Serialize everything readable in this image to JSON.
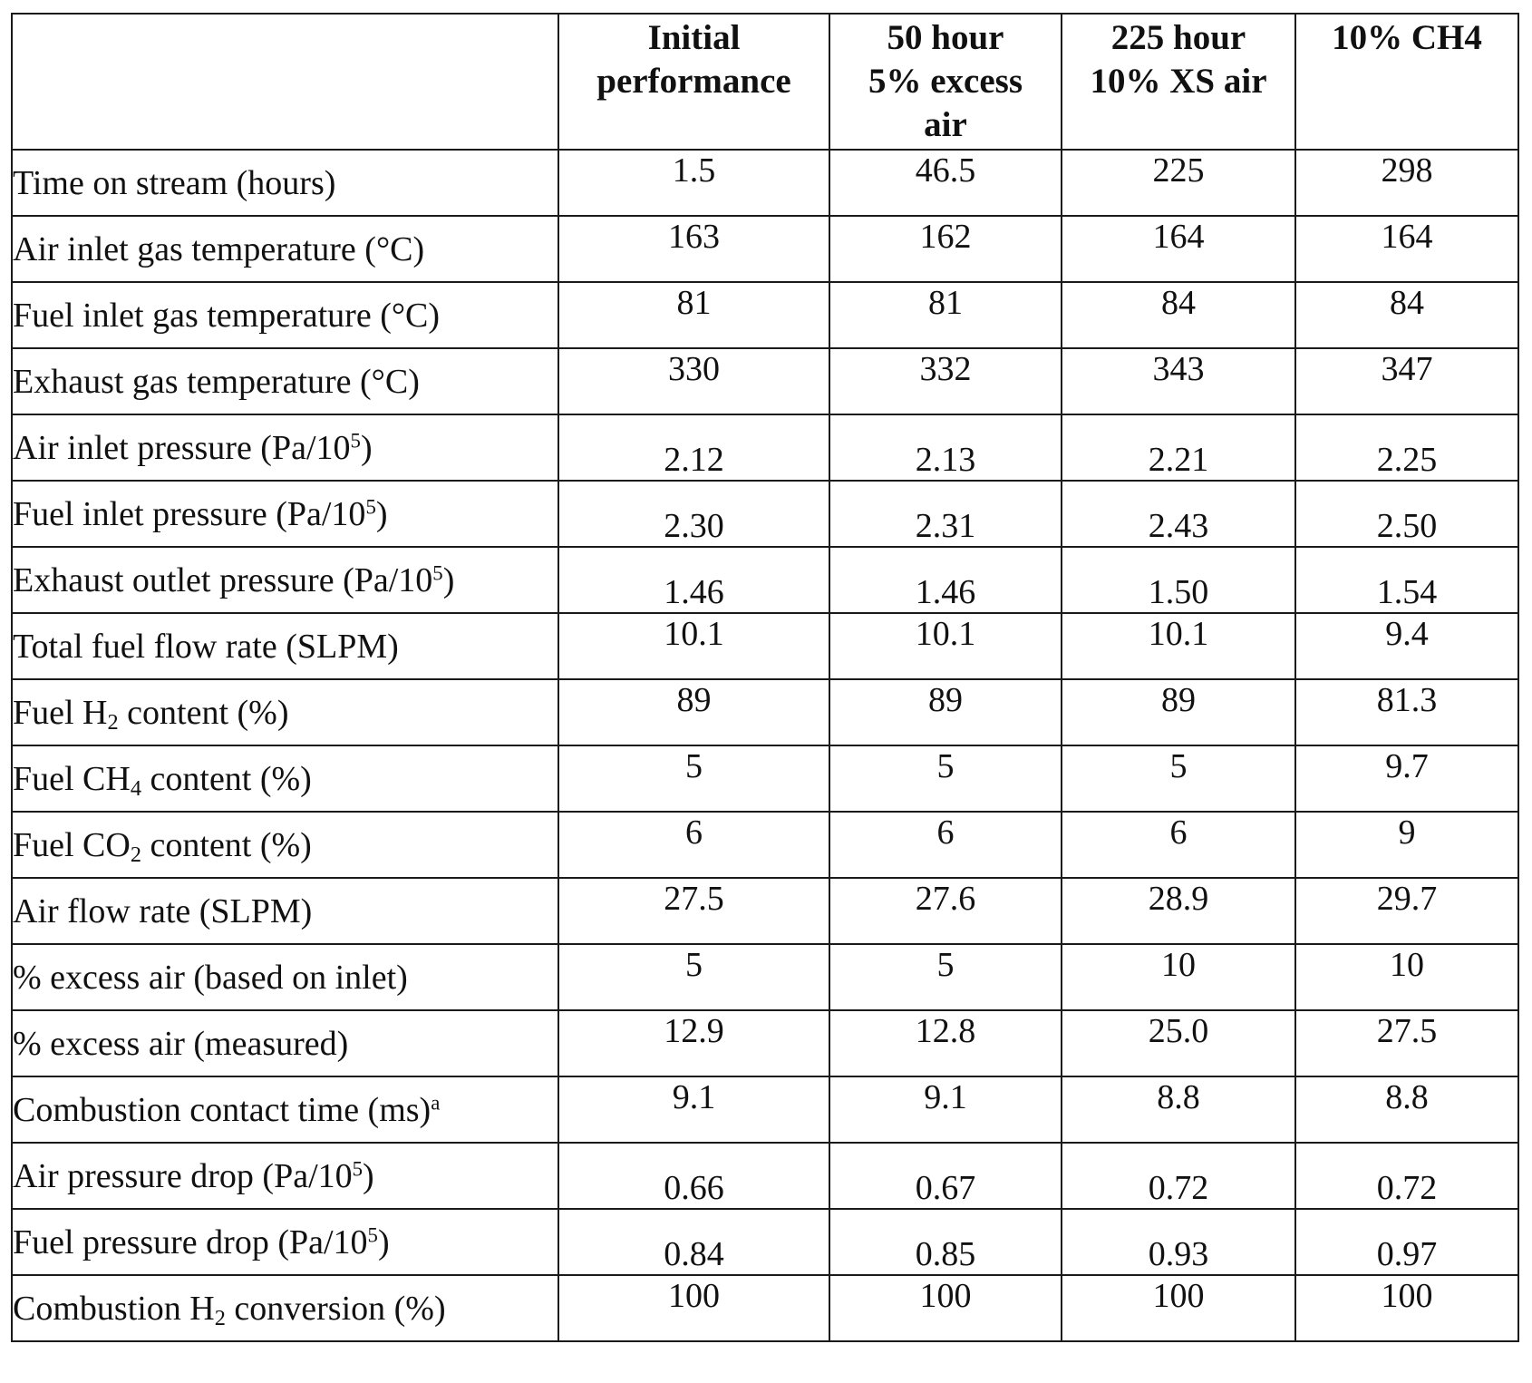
{
  "table": {
    "headers": [
      {
        "lines": []
      },
      {
        "lines": [
          "Initial",
          "performance"
        ]
      },
      {
        "lines": [
          "50 hour",
          "5% excess",
          "air"
        ]
      },
      {
        "lines": [
          "225 hour",
          "10% XS air"
        ]
      },
      {
        "lines": [
          "10% CH4"
        ]
      }
    ],
    "rows": [
      {
        "label": [
          {
            "t": "Time on stream (hours)"
          }
        ],
        "values": [
          "1.5",
          "46.5",
          "225",
          "298"
        ],
        "valign": "top"
      },
      {
        "label": [
          {
            "t": "Air inlet gas temperature (°C)"
          }
        ],
        "values": [
          "163",
          "162",
          "164",
          "164"
        ],
        "valign": "top"
      },
      {
        "label": [
          {
            "t": "Fuel inlet gas temperature (°C)"
          }
        ],
        "values": [
          "81",
          "81",
          "84",
          "84"
        ],
        "valign": "top"
      },
      {
        "label": [
          {
            "t": "Exhaust gas temperature (°C)"
          }
        ],
        "values": [
          "330",
          "332",
          "343",
          "347"
        ],
        "valign": "top"
      },
      {
        "label": [
          {
            "t": "Air inlet pressure (Pa/10"
          },
          {
            "t": "5",
            "sup": true
          },
          {
            "t": ")"
          }
        ],
        "values": [
          "2.12",
          "2.13",
          "2.21",
          "2.25"
        ],
        "valign": "bottom"
      },
      {
        "label": [
          {
            "t": "Fuel inlet pressure (Pa/10"
          },
          {
            "t": "5",
            "sup": true
          },
          {
            "t": ")"
          }
        ],
        "values": [
          "2.30",
          "2.31",
          "2.43",
          "2.50"
        ],
        "valign": "bottom"
      },
      {
        "label": [
          {
            "t": "Exhaust outlet pressure (Pa/10"
          },
          {
            "t": "5",
            "sup": true
          },
          {
            "t": ")"
          }
        ],
        "values": [
          "1.46",
          "1.46",
          "1.50",
          "1.54"
        ],
        "valign": "bottom"
      },
      {
        "label": [
          {
            "t": "Total fuel flow rate (SLPM)"
          }
        ],
        "values": [
          "10.1",
          "10.1",
          "10.1",
          "9.4"
        ],
        "valign": "top"
      },
      {
        "label": [
          {
            "t": "Fuel H"
          },
          {
            "t": "2",
            "sub": true
          },
          {
            "t": " content (%)"
          }
        ],
        "values": [
          "89",
          "89",
          "89",
          "81.3"
        ],
        "valign": "top"
      },
      {
        "label": [
          {
            "t": "Fuel CH"
          },
          {
            "t": "4",
            "sub": true
          },
          {
            "t": " content (%)"
          }
        ],
        "values": [
          "5",
          "5",
          "5",
          "9.7"
        ],
        "valign": "top"
      },
      {
        "label": [
          {
            "t": "Fuel CO"
          },
          {
            "t": "2",
            "sub": true
          },
          {
            "t": " content (%)"
          }
        ],
        "values": [
          "6",
          "6",
          "6",
          "9"
        ],
        "valign": "top"
      },
      {
        "label": [
          {
            "t": "Air flow rate (SLPM)"
          }
        ],
        "values": [
          "27.5",
          "27.6",
          "28.9",
          "29.7"
        ],
        "valign": "top"
      },
      {
        "label": [
          {
            "t": "% excess air (based on inlet)"
          }
        ],
        "values": [
          "5",
          "5",
          "10",
          "10"
        ],
        "valign": "top"
      },
      {
        "label": [
          {
            "t": "% excess air  (measured)"
          }
        ],
        "values": [
          "12.9",
          "12.8",
          "25.0",
          "27.5"
        ],
        "valign": "top"
      },
      {
        "label": [
          {
            "t": "Combustion contact time (ms)"
          },
          {
            "t": "a",
            "sup": true
          }
        ],
        "values": [
          "9.1",
          "9.1",
          "8.8",
          "8.8"
        ],
        "valign": "top"
      },
      {
        "label": [
          {
            "t": "Air pressure drop (Pa/10"
          },
          {
            "t": "5",
            "sup": true
          },
          {
            "t": ")"
          }
        ],
        "values": [
          "0.66",
          "0.67",
          "0.72",
          "0.72"
        ],
        "valign": "bottom"
      },
      {
        "label": [
          {
            "t": "Fuel pressure drop (Pa/10"
          },
          {
            "t": "5",
            "sup": true
          },
          {
            "t": ")"
          }
        ],
        "values": [
          "0.84",
          "0.85",
          "0.93",
          "0.97"
        ],
        "valign": "bottom"
      },
      {
        "label": [
          {
            "t": "Combustion H"
          },
          {
            "t": "2",
            "sub": true
          },
          {
            "t": " conversion (%)"
          }
        ],
        "values": [
          "100",
          "100",
          "100",
          "100"
        ],
        "valign": "top"
      }
    ]
  }
}
